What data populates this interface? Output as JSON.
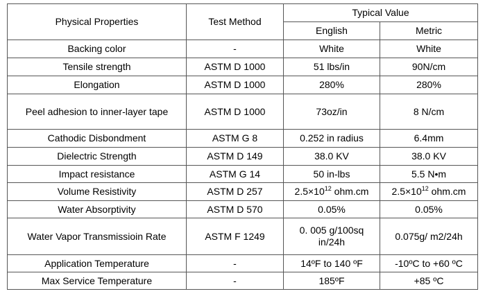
{
  "header": {
    "properties": "Physical Properties",
    "method": "Test Method",
    "typical": "Typical Value",
    "english": "English",
    "metric": "Metric"
  },
  "rows": [
    [
      "Backing color",
      "-",
      "White",
      "White"
    ],
    [
      "Tensile strength",
      "ASTM D 1000",
      "51 lbs/in",
      "90N/cm"
    ],
    [
      "Elongation",
      "ASTM D 1000",
      "280%",
      "280%"
    ],
    [
      "Peel adhesion to inner-layer tape",
      "ASTM D 1000",
      "73oz/in",
      "8 N/cm"
    ],
    [
      "Cathodic Disbondment",
      "ASTM G 8",
      "0.252 in radius",
      "6.4mm"
    ],
    [
      "Dielectric Strength",
      "ASTM D 149",
      "38.0 KV",
      "38.0 KV"
    ],
    [
      "Impact resistance",
      "ASTM G 14",
      "50 in-lbs",
      "5.5 N•m"
    ],
    [
      "Volume Resistivity",
      "ASTM D 257",
      {
        "base": "2.5×10",
        "exp": "12",
        "unit": " ohm.cm"
      },
      {
        "base": "2.5×10",
        "exp": "12",
        "unit": " ohm.cm"
      }
    ],
    [
      "Water Absorptivity",
      "ASTM D 570",
      "0.05%",
      "0.05%"
    ],
    [
      "Water Vapor Transmissioin Rate",
      "ASTM F 1249",
      "0. 005 g/100sq in/24h",
      "0.075g/ m2/24h"
    ],
    [
      "Application Temperature",
      "-",
      "14ºF to 140 ºF",
      "-10ºC to +60 ºC"
    ],
    [
      "Max Service Temperature",
      "-",
      "185ºF",
      "+85 ºC"
    ]
  ]
}
